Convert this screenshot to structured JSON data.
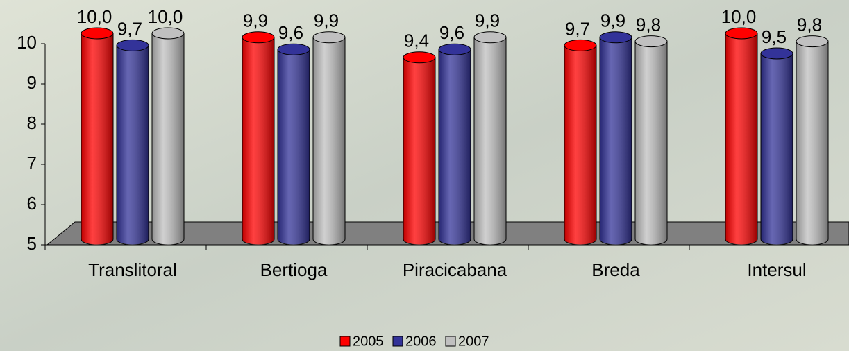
{
  "chart_data": {
    "type": "bar3d",
    "categories": [
      "Translitoral",
      "Bertioga",
      "Piracicabana",
      "Breda",
      "Intersul"
    ],
    "series": [
      {
        "name": "2005",
        "color": "#ff0000",
        "values": [
          10.0,
          9.9,
          9.4,
          9.7,
          10.0
        ],
        "value_labels": [
          "10,0",
          "9,9",
          "9,4",
          "9,7",
          "10,0"
        ]
      },
      {
        "name": "2006",
        "color": "#333399",
        "values": [
          9.7,
          9.6,
          9.6,
          9.9,
          9.5
        ],
        "value_labels": [
          "9,7",
          "9,6",
          "9,6",
          "9,9",
          "9,5"
        ]
      },
      {
        "name": "2007",
        "color": "#c0c0c0",
        "values": [
          10.0,
          9.9,
          9.9,
          9.8,
          9.8
        ],
        "value_labels": [
          "10,0",
          "9,9",
          "9,9",
          "9,8",
          "9,8"
        ]
      }
    ],
    "ylim": [
      5,
      10
    ],
    "yticks": [
      5,
      6,
      7,
      8,
      9,
      10
    ],
    "legend": "bottom"
  }
}
